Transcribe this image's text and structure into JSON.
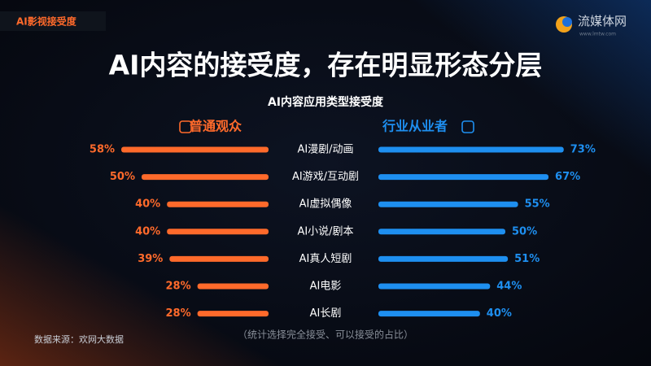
{
  "header": {
    "tag": "AI影视接受度",
    "logo": "流媒体网",
    "logo_url": "www.lmtw.com"
  },
  "chart_data": {
    "type": "butterfly-bar",
    "title": "AI内容的接受度，存在明显形态分层",
    "subtitle": "AI内容应用类型接受度",
    "categories": [
      "AI漫剧/动画",
      "AI游戏/互动剧",
      "AI虚拟偶像",
      "AI小说/剧本",
      "AI真人短剧",
      "AI电影",
      "AI长剧"
    ],
    "series": [
      {
        "name": "普通观众",
        "color": "#ff6a2b",
        "values": [
          58,
          50,
          40,
          40,
          39,
          28,
          28
        ],
        "value_labels": [
          "58%",
          "50%",
          "40%",
          "40%",
          "39%",
          "28%",
          "28%"
        ]
      },
      {
        "name": "行业从业者",
        "color": "#1e8ff0",
        "values": [
          73,
          67,
          55,
          50,
          51,
          44,
          40
        ],
        "value_labels": [
          "73%",
          "67%",
          "55%",
          "50%",
          "51%",
          "44%",
          "40%"
        ]
      }
    ]
  },
  "footer": {
    "source": "数据来源：欢网大数据",
    "note": "（统计选择完全接受、可以接受的占比）"
  }
}
